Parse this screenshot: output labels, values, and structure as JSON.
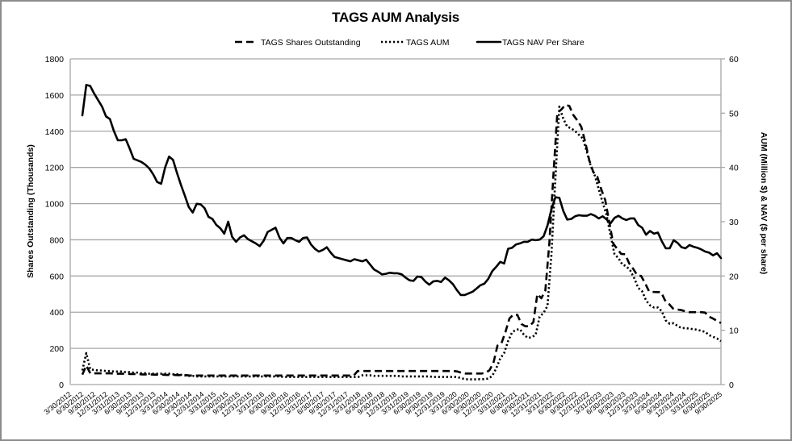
{
  "chart_data": {
    "type": "line",
    "title": "TAGS AUM Analysis",
    "legend_position": "top",
    "grid": true,
    "colors": {
      "line": "#000000",
      "grid": "#a6a6a6",
      "border": "#8c8c8c"
    },
    "x_frequency": "monthly",
    "x_tick_labels": [
      "3/30/2012",
      "6/30/2012",
      "9/30/2012",
      "12/31/2012",
      "3/31/2013",
      "6/30/2013",
      "9/30/2013",
      "12/31/2013",
      "3/31/2014",
      "6/30/2014",
      "9/30/2014",
      "12/31/2014",
      "3/31/2015",
      "6/30/2015",
      "9/30/2015",
      "12/31/2015",
      "3/31/2016",
      "6/30/2016",
      "9/30/2016",
      "12/31/2016",
      "3/31/2017",
      "6/30/2017",
      "9/30/2017",
      "12/31/2017",
      "3/31/2018",
      "6/30/2018",
      "9/30/2018",
      "12/31/2018",
      "3/31/2019",
      "6/30/2019",
      "9/30/2019",
      "12/31/2019",
      "3/31/2020",
      "6/30/2020",
      "9/30/2020",
      "12/31/2020",
      "3/31/2021",
      "6/30/2021",
      "9/30/2021",
      "12/31/2021",
      "3/31/2022",
      "6/30/2022",
      "9/30/2022",
      "12/31/2022",
      "3/31/2023",
      "6/30/2023",
      "9/30/2023",
      "12/31/2023",
      "3/31/2024",
      "6/30/2024",
      "9/30/2024",
      "12/31/2024",
      "3/31/2025",
      "6/30/2025",
      "9/30/2025"
    ],
    "y_left": {
      "label": "Shares Outstanding (Thousands)",
      "range": [
        0,
        1800
      ],
      "ticks": [
        0,
        200,
        400,
        600,
        800,
        1000,
        1200,
        1400,
        1600,
        1800
      ]
    },
    "y_right": {
      "label": "AUM (Million $) & NAV ($ per share)",
      "range": [
        0,
        60
      ],
      "ticks": [
        0,
        10,
        20,
        30,
        40,
        50,
        60
      ]
    },
    "series": [
      {
        "name": "TAGS Shares Outstanding",
        "axis": "left",
        "style": "dashed",
        "values": [
          55,
          105,
          62,
          62,
          62,
          62,
          62,
          62,
          60,
          60,
          60,
          60,
          58,
          58,
          58,
          56,
          56,
          56,
          55,
          55,
          55,
          53,
          53,
          53,
          52,
          52,
          52,
          50,
          50,
          50,
          50,
          50,
          50,
          50,
          50,
          50,
          50,
          50,
          50,
          50,
          50,
          50,
          50,
          50,
          50,
          50,
          50,
          50,
          50,
          50,
          50,
          50,
          50,
          50,
          50,
          50,
          50,
          50,
          50,
          50,
          50,
          50,
          50,
          50,
          50,
          50,
          50,
          50,
          50,
          75,
          75,
          75,
          75,
          75,
          75,
          75,
          75,
          75,
          75,
          75,
          75,
          75,
          75,
          75,
          75,
          75,
          75,
          75,
          75,
          75,
          75,
          75,
          75,
          75,
          72,
          65,
          61,
          61,
          61,
          61,
          61,
          65,
          79,
          120,
          215,
          228,
          290,
          365,
          387,
          385,
          335,
          322,
          322,
          345,
          500,
          477,
          520,
          780,
          1150,
          1500,
          1520,
          1545,
          1540,
          1490,
          1460,
          1425,
          1340,
          1240,
          1175,
          1150,
          1080,
          1020,
          900,
          780,
          750,
          722,
          720,
          670,
          640,
          605,
          600,
          560,
          515,
          512,
          511,
          511,
          465,
          445,
          420,
          415,
          412,
          405,
          400,
          400,
          400,
          400,
          398,
          375,
          365,
          352,
          340
        ]
      },
      {
        "name": "TAGS AUM",
        "axis": "right",
        "style": "dotted",
        "values": [
          2.6,
          5.8,
          2.8,
          2.7,
          2.6,
          2.6,
          2.5,
          2.5,
          2.4,
          2.4,
          2.4,
          2.3,
          2.3,
          2.2,
          2.2,
          2.1,
          2.1,
          2.0,
          2.0,
          2.0,
          2.0,
          2.0,
          2.0,
          1.9,
          1.9,
          1.8,
          1.7,
          1.6,
          1.6,
          1.5,
          1.5,
          1.5,
          1.5,
          1.5,
          1.5,
          1.5,
          1.5,
          1.5,
          1.5,
          1.5,
          1.5,
          1.5,
          1.5,
          1.5,
          1.5,
          1.5,
          1.5,
          1.5,
          1.5,
          1.5,
          1.5,
          1.4,
          1.4,
          1.4,
          1.4,
          1.4,
          1.4,
          1.4,
          1.4,
          1.4,
          1.4,
          1.4,
          1.4,
          1.4,
          1.4,
          1.4,
          1.4,
          1.4,
          1.4,
          1.4,
          1.4,
          1.7,
          1.7,
          1.7,
          1.6,
          1.6,
          1.6,
          1.6,
          1.6,
          1.6,
          1.6,
          1.5,
          1.5,
          1.5,
          1.5,
          1.5,
          1.5,
          1.5,
          1.5,
          1.4,
          1.4,
          1.4,
          1.4,
          1.4,
          1.4,
          1.4,
          1.2,
          1.0,
          0.95,
          0.95,
          0.95,
          1.0,
          1.0,
          1.1,
          1.6,
          3.0,
          4.8,
          5.8,
          8.0,
          9.6,
          10.1,
          10.2,
          9.2,
          8.6,
          8.7,
          9.2,
          12.5,
          13.2,
          14.5,
          24.0,
          38.0,
          51.2,
          49.0,
          47.5,
          47.2,
          46.7,
          46.0,
          45.3,
          42.8,
          40.2,
          38.5,
          36.0,
          33.5,
          31.2,
          27.5,
          24.0,
          23.3,
          22.1,
          21.8,
          21.0,
          19.6,
          17.8,
          17.2,
          15.5,
          14.6,
          14.2,
          14.2,
          13.5,
          11.8,
          11.2,
          11.3,
          10.8,
          10.4,
          10.4,
          10.3,
          10.2,
          10.1,
          9.9,
          9.7,
          9.1,
          8.8,
          8.5,
          8.0
        ]
      },
      {
        "name": "TAGS NAV Per Share",
        "axis": "right",
        "style": "solid",
        "values": [
          49.6,
          55.2,
          55.0,
          53.6,
          52.4,
          51.2,
          49.4,
          48.9,
          46.7,
          45.0,
          45.0,
          45.2,
          43.5,
          41.6,
          41.3,
          41.0,
          40.5,
          39.8,
          38.7,
          37.3,
          37.0,
          40.0,
          42.0,
          41.4,
          39.0,
          36.8,
          34.8,
          32.7,
          31.7,
          33.3,
          33.2,
          32.5,
          30.9,
          30.5,
          29.4,
          28.8,
          27.8,
          30.0,
          27.2,
          26.3,
          27.1,
          27.5,
          26.8,
          26.4,
          26.0,
          25.5,
          26.5,
          28.1,
          28.5,
          28.9,
          27.1,
          26.0,
          27.0,
          27.0,
          26.6,
          26.3,
          27.0,
          27.1,
          25.8,
          25.0,
          24.5,
          24.8,
          25.3,
          24.3,
          23.5,
          23.3,
          23.1,
          22.9,
          22.7,
          23.1,
          22.9,
          22.7,
          23.0,
          22.1,
          21.2,
          20.8,
          20.3,
          20.4,
          20.6,
          20.5,
          20.5,
          20.3,
          19.7,
          19.2,
          19.1,
          19.9,
          19.8,
          19.0,
          18.4,
          19.0,
          19.1,
          18.9,
          19.7,
          19.2,
          18.5,
          17.4,
          16.5,
          16.5,
          16.8,
          17.1,
          17.7,
          18.3,
          18.6,
          19.5,
          20.9,
          21.7,
          22.6,
          22.3,
          25.0,
          25.2,
          25.8,
          26.0,
          26.3,
          26.3,
          26.7,
          26.6,
          26.7,
          27.3,
          29.3,
          32.3,
          34.5,
          34.4,
          32.0,
          30.4,
          30.5,
          31.0,
          31.2,
          31.1,
          31.1,
          31.4,
          31.1,
          30.6,
          31.0,
          30.4,
          29.7,
          30.7,
          31.1,
          30.6,
          30.3,
          30.6,
          30.6,
          29.4,
          28.9,
          27.6,
          28.3,
          27.8,
          28.0,
          26.4,
          25.1,
          25.1,
          26.6,
          26.1,
          25.3,
          25.1,
          25.7,
          25.4,
          25.2,
          24.9,
          24.5,
          24.3,
          23.8,
          24.2,
          23.3
        ]
      }
    ]
  }
}
